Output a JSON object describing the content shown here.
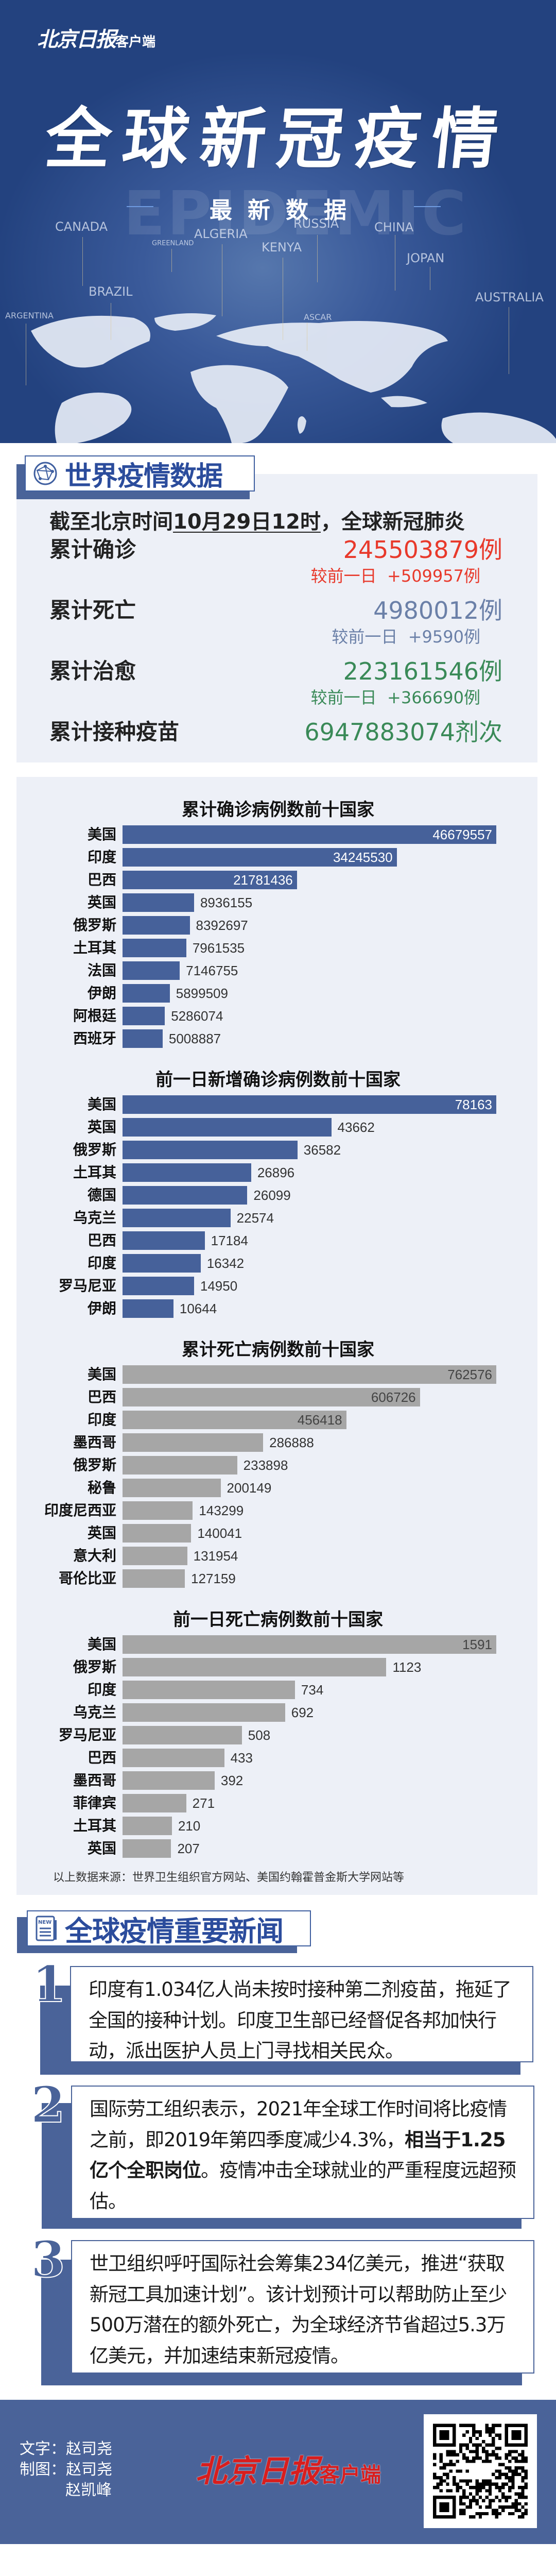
{
  "header": {
    "logo": "北京日报",
    "logo_suffix": "客户端",
    "title": "全球新冠疫情",
    "watermark": "EPIDEMIC",
    "subtitle": "最新数据",
    "map_labels": [
      "CANADA",
      "GREENLAND",
      "ALGERIA",
      "KENYA",
      "RUSSIA",
      "CHINA",
      "JOPAN",
      "AUSTRALIA",
      "BRAZIL",
      "ARGENTINA",
      "ASCAR"
    ],
    "colors": {
      "background": "#2a4a8e",
      "accent_line": "#6f9be0"
    }
  },
  "stats": {
    "section_title": "世界疫情数据",
    "section_icon": "globe-network-icon",
    "date_prefix": "截至北京时间",
    "date": "10月29日12时",
    "date_suffix": "，全球新冠肺炎",
    "items": [
      {
        "label": "累计确诊",
        "value": "245503879例",
        "delta_label": "较前一日",
        "delta": "+509957例",
        "color": "#e8392b"
      },
      {
        "label": "累计死亡",
        "value": "4980012例",
        "delta_label": "较前一日",
        "delta": "+9590例",
        "color": "#6b80a8"
      },
      {
        "label": "累计治愈",
        "value": "223161546例",
        "delta_label": "较前一日",
        "delta": "+366690例",
        "color": "#3a8a58"
      },
      {
        "label": "累计接种疫苗",
        "value": "6947883074剂次",
        "color": "#3a8a58"
      }
    ]
  },
  "chart_data": [
    {
      "type": "bar",
      "orientation": "horizontal",
      "title": "累计确诊病例数前十国家",
      "color": "#46619a",
      "categories": [
        "美国",
        "印度",
        "巴西",
        "英国",
        "俄罗斯",
        "土耳其",
        "法国",
        "伊朗",
        "阿根廷",
        "西班牙"
      ],
      "values": [
        46679557,
        34245530,
        21781436,
        8936155,
        8392697,
        7961535,
        7146755,
        5899509,
        5286074,
        5008887
      ]
    },
    {
      "type": "bar",
      "orientation": "horizontal",
      "title": "前一日新增确诊病例数前十国家",
      "color": "#46619a",
      "categories": [
        "美国",
        "英国",
        "俄罗斯",
        "土耳其",
        "德国",
        "乌克兰",
        "巴西",
        "印度",
        "罗马尼亚",
        "伊朗"
      ],
      "values": [
        78163,
        43662,
        36582,
        26896,
        26099,
        22574,
        17184,
        16342,
        14950,
        10644
      ]
    },
    {
      "type": "bar",
      "orientation": "horizontal",
      "title": "累计死亡病例数前十国家",
      "color": "#a6a6a6",
      "categories": [
        "美国",
        "巴西",
        "印度",
        "墨西哥",
        "俄罗斯",
        "秘鲁",
        "印度尼西亚",
        "英国",
        "意大利",
        "哥伦比亚"
      ],
      "values": [
        762576,
        606726,
        456418,
        286888,
        233898,
        200149,
        143299,
        140041,
        131954,
        127159
      ]
    },
    {
      "type": "bar",
      "orientation": "horizontal",
      "title": "前一日死亡病例数前十国家",
      "color": "#a6a6a6",
      "categories": [
        "美国",
        "俄罗斯",
        "印度",
        "乌克兰",
        "罗马尼亚",
        "巴西",
        "墨西哥",
        "菲律宾",
        "土耳其",
        "英国"
      ],
      "values": [
        1591,
        1123,
        734,
        692,
        508,
        433,
        392,
        271,
        210,
        207
      ]
    }
  ],
  "source_note": "以上数据来源：世界卫生组织官方网站、美国约翰霍普金斯大学网站等",
  "news": {
    "section_title": "全球疫情重要新闻",
    "section_icon": "newspaper-icon",
    "items": [
      {
        "num": "1",
        "text": "印度有1.034亿人尚未按时接种第二剂疫苗，拖延了全国的接种计划。印度卫生部已经督促各邦加快行动，派出医护人员上门寻找相关民众。"
      },
      {
        "num": "2",
        "text_before": "国际劳工组织表示，2021年全球工作时间将比疫情之前，即2019年第四季度减少4.3%，",
        "text_bold": "相当于1.25亿个全职岗位",
        "text_after": "。疫情冲击全球就业的严重程度远超预估。"
      },
      {
        "num": "3",
        "text": "世卫组织呼吁国际社会筹集234亿美元，推进“获取新冠工具加速计划”。该计划预计可以帮助防止至少500万潜在的额外死亡，为全球经济节省超过5.3万亿美元，并加速结束新冠疫情。"
      }
    ]
  },
  "footer": {
    "text_label": "文字：",
    "text_author": "赵司尧",
    "graphic_label": "制图：",
    "graphic_authors": [
      "赵司尧",
      "赵凯峰"
    ],
    "logo": "北京日报",
    "logo_suffix": "客户端",
    "qr_icon": "qr-code-icon",
    "background": "#4a6399"
  }
}
